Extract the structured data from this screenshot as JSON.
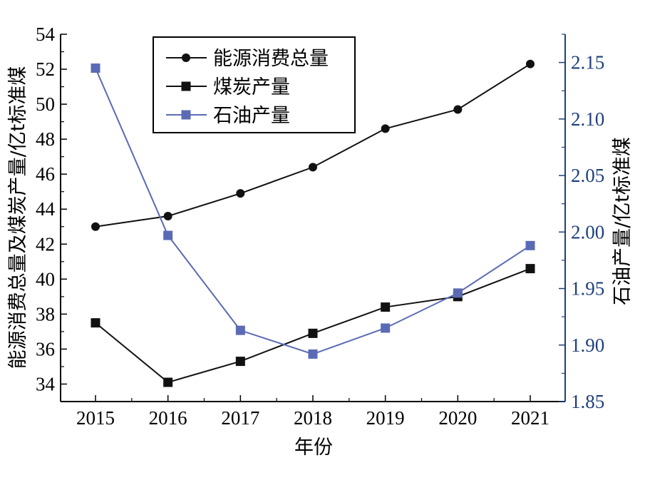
{
  "chart_data": {
    "type": "line",
    "xlabel": "年份",
    "ylabel_left": "能源消费总量及煤炭产量/亿t标准煤",
    "ylabel_right": "石油产量/亿t标准煤",
    "categories": [
      "2015",
      "2016",
      "2017",
      "2018",
      "2019",
      "2020",
      "2021"
    ],
    "y_left": {
      "lim": [
        33,
        54
      ],
      "ticks": [
        34,
        36,
        38,
        40,
        42,
        44,
        46,
        48,
        50,
        52,
        54
      ]
    },
    "y_right": {
      "lim": [
        1.85,
        2.175
      ],
      "ticks": [
        "1.85",
        "1.90",
        "1.95",
        "2.00",
        "2.05",
        "2.10",
        "2.15"
      ]
    },
    "series": [
      {
        "name": "能源消费总量",
        "axis": "left",
        "marker": "circle",
        "color": "#111111",
        "values": [
          43.0,
          43.6,
          44.9,
          46.4,
          48.6,
          49.7,
          52.3
        ]
      },
      {
        "name": "煤炭产量",
        "axis": "left",
        "marker": "square",
        "color": "#111111",
        "values": [
          37.5,
          34.1,
          35.3,
          36.9,
          38.4,
          39.0,
          40.6
        ]
      },
      {
        "name": "石油产量",
        "axis": "right",
        "marker": "square",
        "color": "#5b6ab5",
        "values": [
          2.145,
          1.997,
          1.913,
          1.892,
          1.915,
          1.946,
          1.988
        ]
      }
    ],
    "legend": {
      "placement": "top-center"
    },
    "grid": false
  }
}
